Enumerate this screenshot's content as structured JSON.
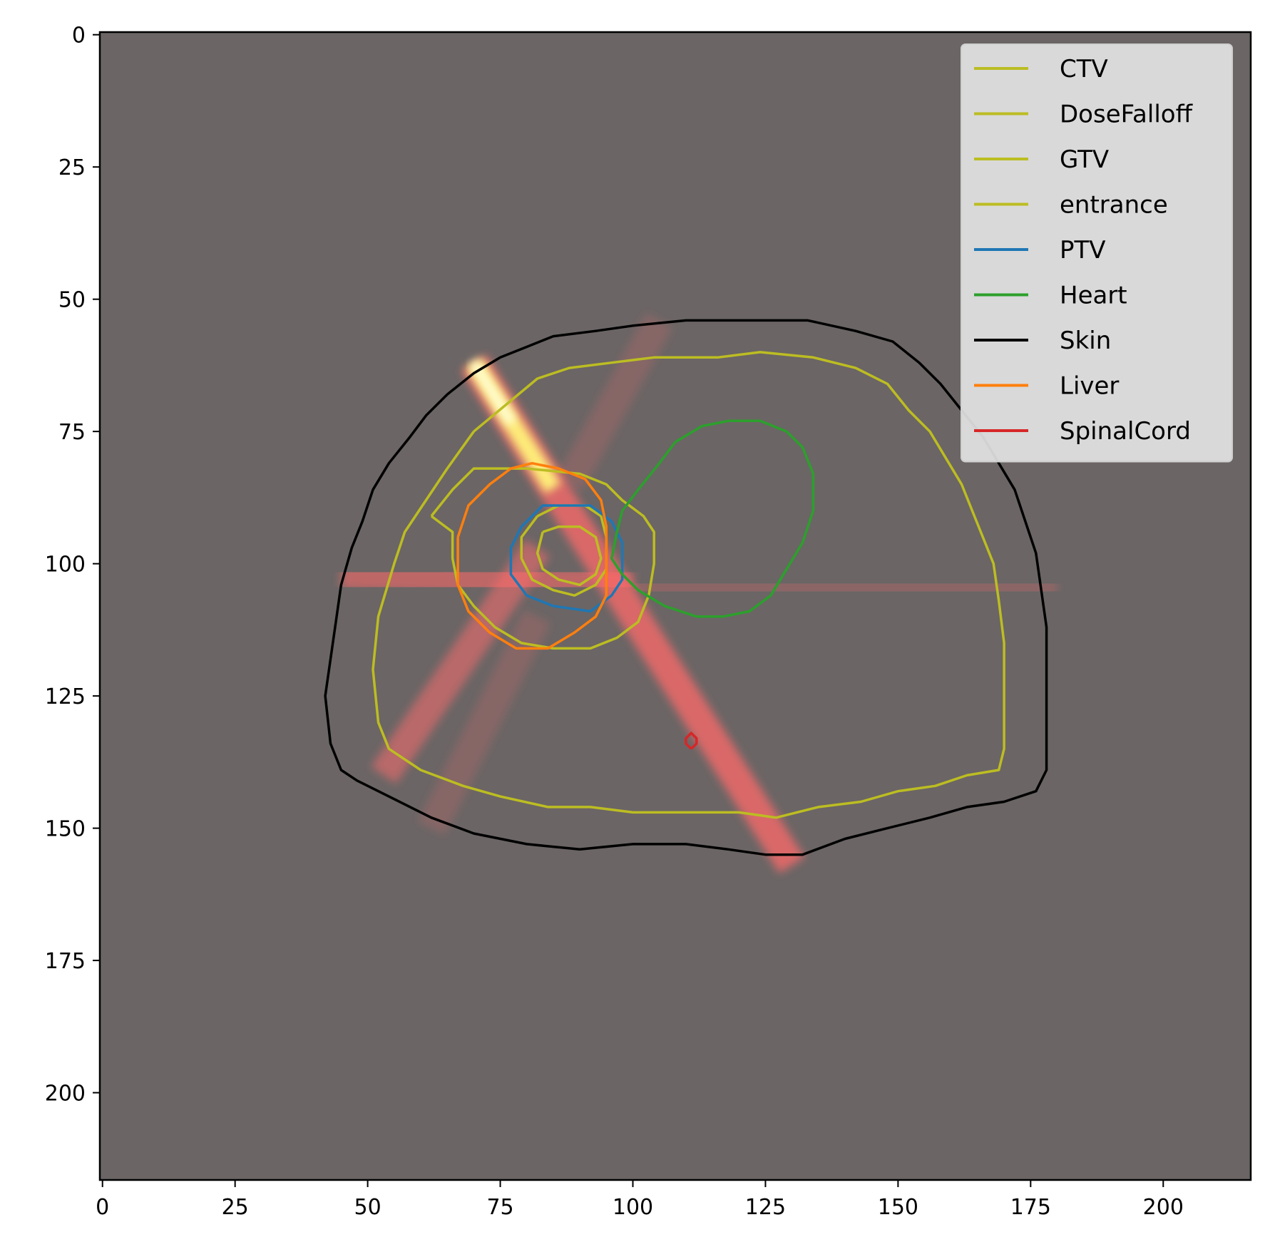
{
  "chart_data": {
    "type": "image",
    "title": "",
    "xlabel": "",
    "ylabel": "",
    "xlim": [
      -0.5,
      216.5
    ],
    "ylim": [
      216.5,
      -0.5
    ],
    "x_ticks": [
      0,
      25,
      50,
      75,
      100,
      125,
      150,
      175,
      200
    ],
    "y_ticks": [
      0,
      25,
      50,
      75,
      100,
      125,
      150,
      175,
      200
    ],
    "background_color": "#6b6565",
    "legend_position": "top-right",
    "dose_beams": [
      {
        "from": [
          70,
          62
        ],
        "to": [
          130,
          157
        ],
        "intensity": 1.0
      },
      {
        "from": [
          45,
          102
        ],
        "to": [
          100,
          104
        ],
        "intensity": 0.75
      },
      {
        "from": [
          53,
          140
        ],
        "to": [
          82,
          97
        ],
        "intensity": 0.7
      },
      {
        "from": [
          100,
          104
        ],
        "to": [
          180,
          105
        ],
        "intensity": 0.3
      },
      {
        "from": [
          88,
          85
        ],
        "to": [
          105,
          54
        ],
        "intensity": 0.25
      },
      {
        "from": [
          82,
          110
        ],
        "to": [
          62,
          150
        ],
        "intensity": 0.25
      }
    ],
    "series": [
      {
        "name": "CTV",
        "color": "#bcbd22",
        "points": [
          [
            62,
            91
          ],
          [
            66,
            86
          ],
          [
            70,
            82
          ],
          [
            80,
            82
          ],
          [
            90,
            83
          ],
          [
            95,
            85
          ],
          [
            98,
            88
          ],
          [
            102,
            91
          ],
          [
            104,
            94
          ],
          [
            104,
            100
          ],
          [
            103,
            106
          ],
          [
            101,
            111
          ],
          [
            97,
            114
          ],
          [
            92,
            116
          ],
          [
            85,
            116
          ],
          [
            79,
            115
          ],
          [
            74,
            112
          ],
          [
            70,
            108
          ],
          [
            67,
            104
          ],
          [
            66,
            99
          ],
          [
            66,
            94
          ],
          [
            62,
            91
          ]
        ]
      },
      {
        "name": "DoseFalloff",
        "color": "#bcbd22",
        "points": [
          [
            70,
            75
          ],
          [
            76,
            70
          ],
          [
            82,
            65
          ],
          [
            88,
            63
          ],
          [
            96,
            62
          ],
          [
            104,
            61
          ],
          [
            116,
            61
          ],
          [
            124,
            60
          ],
          [
            134,
            61
          ],
          [
            142,
            63
          ],
          [
            148,
            66
          ],
          [
            152,
            71
          ],
          [
            156,
            75
          ],
          [
            159,
            80
          ],
          [
            162,
            85
          ],
          [
            164,
            90
          ],
          [
            166,
            95
          ],
          [
            168,
            100
          ],
          [
            169,
            107
          ],
          [
            170,
            115
          ],
          [
            170,
            125
          ],
          [
            170,
            135
          ],
          [
            169,
            139
          ],
          [
            163,
            140
          ],
          [
            157,
            142
          ],
          [
            150,
            143
          ],
          [
            143,
            145
          ],
          [
            135,
            146
          ],
          [
            127,
            148
          ],
          [
            120,
            147
          ],
          [
            112,
            147
          ],
          [
            100,
            147
          ],
          [
            92,
            146
          ],
          [
            84,
            146
          ],
          [
            75,
            144
          ],
          [
            68,
            142
          ],
          [
            60,
            139
          ],
          [
            54,
            135
          ],
          [
            52,
            130
          ],
          [
            51,
            120
          ],
          [
            52,
            110
          ],
          [
            55,
            100
          ],
          [
            57,
            94
          ],
          [
            61,
            88
          ],
          [
            65,
            82
          ],
          [
            70,
            75
          ]
        ]
      },
      {
        "name": "GTV",
        "color": "#bcbd22",
        "points": [
          [
            82,
            91
          ],
          [
            86,
            89
          ],
          [
            91,
            89
          ],
          [
            94,
            91
          ],
          [
            95,
            95
          ],
          [
            95,
            101
          ],
          [
            93,
            104
          ],
          [
            89,
            106
          ],
          [
            85,
            105
          ],
          [
            81,
            103
          ],
          [
            79,
            99
          ],
          [
            79,
            95
          ],
          [
            82,
            91
          ]
        ]
      },
      {
        "name": "entrance",
        "color": "#bcbd22",
        "points": [
          [
            83,
            94
          ],
          [
            86,
            93
          ],
          [
            90,
            93
          ],
          [
            93,
            95
          ],
          [
            94,
            99
          ],
          [
            93,
            102
          ],
          [
            90,
            104
          ],
          [
            86,
            103
          ],
          [
            83,
            101
          ],
          [
            82,
            98
          ],
          [
            83,
            94
          ]
        ]
      },
      {
        "name": "PTV",
        "color": "#1f77b4",
        "points": [
          [
            79,
            93
          ],
          [
            83,
            89
          ],
          [
            92,
            89
          ],
          [
            96,
            92
          ],
          [
            98,
            96
          ],
          [
            98,
            103
          ],
          [
            96,
            106
          ],
          [
            92,
            109
          ],
          [
            85,
            108
          ],
          [
            80,
            106
          ],
          [
            77,
            102
          ],
          [
            77,
            97
          ],
          [
            79,
            93
          ]
        ]
      },
      {
        "name": "Heart",
        "color": "#2ca02c",
        "points": [
          [
            98,
            90
          ],
          [
            101,
            86
          ],
          [
            105,
            81
          ],
          [
            108,
            77
          ],
          [
            113,
            74
          ],
          [
            118,
            73
          ],
          [
            124,
            73
          ],
          [
            129,
            75
          ],
          [
            132,
            78
          ],
          [
            134,
            83
          ],
          [
            134,
            90
          ],
          [
            132,
            96
          ],
          [
            129,
            101
          ],
          [
            126,
            106
          ],
          [
            122,
            109
          ],
          [
            117,
            110
          ],
          [
            112,
            110
          ],
          [
            106,
            108
          ],
          [
            101,
            105
          ],
          [
            98,
            102
          ],
          [
            96,
            99
          ],
          [
            97,
            94
          ],
          [
            98,
            90
          ]
        ]
      },
      {
        "name": "Skin",
        "color": "#000000",
        "points": [
          [
            44,
            111
          ],
          [
            45,
            104
          ],
          [
            47,
            97
          ],
          [
            49,
            92
          ],
          [
            51,
            86
          ],
          [
            54,
            81
          ],
          [
            58,
            76
          ],
          [
            61,
            72
          ],
          [
            65,
            68
          ],
          [
            70,
            64
          ],
          [
            75,
            61
          ],
          [
            80,
            59
          ],
          [
            85,
            57
          ],
          [
            93,
            56
          ],
          [
            100,
            55
          ],
          [
            110,
            54
          ],
          [
            120,
            54
          ],
          [
            133,
            54
          ],
          [
            142,
            56
          ],
          [
            149,
            58
          ],
          [
            154,
            62
          ],
          [
            158,
            66
          ],
          [
            162,
            71
          ],
          [
            166,
            76
          ],
          [
            169,
            81
          ],
          [
            172,
            86
          ],
          [
            174,
            92
          ],
          [
            176,
            98
          ],
          [
            177,
            105
          ],
          [
            178,
            112
          ],
          [
            178,
            122
          ],
          [
            178,
            130
          ],
          [
            178,
            139
          ],
          [
            176,
            143
          ],
          [
            170,
            145
          ],
          [
            163,
            146
          ],
          [
            156,
            148
          ],
          [
            148,
            150
          ],
          [
            140,
            152
          ],
          [
            132,
            155
          ],
          [
            125,
            155
          ],
          [
            118,
            154
          ],
          [
            110,
            153
          ],
          [
            100,
            153
          ],
          [
            90,
            154
          ],
          [
            80,
            153
          ],
          [
            70,
            151
          ],
          [
            62,
            148
          ],
          [
            54,
            144
          ],
          [
            48,
            141
          ],
          [
            45,
            139
          ],
          [
            43,
            134
          ],
          [
            42,
            125
          ],
          [
            44,
            111
          ]
        ]
      },
      {
        "name": "Liver",
        "color": "#ff7f0e",
        "points": [
          [
            67,
            95
          ],
          [
            69,
            89
          ],
          [
            73,
            85
          ],
          [
            77,
            82
          ],
          [
            81,
            81
          ],
          [
            86,
            82
          ],
          [
            91,
            84
          ],
          [
            94,
            88
          ],
          [
            95,
            93
          ],
          [
            95,
            101
          ],
          [
            95,
            106
          ],
          [
            93,
            110
          ],
          [
            89,
            113
          ],
          [
            84,
            116
          ],
          [
            78,
            116
          ],
          [
            73,
            113
          ],
          [
            69,
            109
          ],
          [
            67,
            104
          ],
          [
            67,
            99
          ],
          [
            67,
            95
          ]
        ]
      },
      {
        "name": "SpinalCord",
        "color": "#d62728",
        "points": [
          [
            111,
            135
          ],
          [
            110,
            134
          ],
          [
            110,
            133
          ],
          [
            111,
            132
          ],
          [
            112,
            133
          ],
          [
            112,
            134
          ],
          [
            111,
            135
          ]
        ]
      }
    ]
  }
}
